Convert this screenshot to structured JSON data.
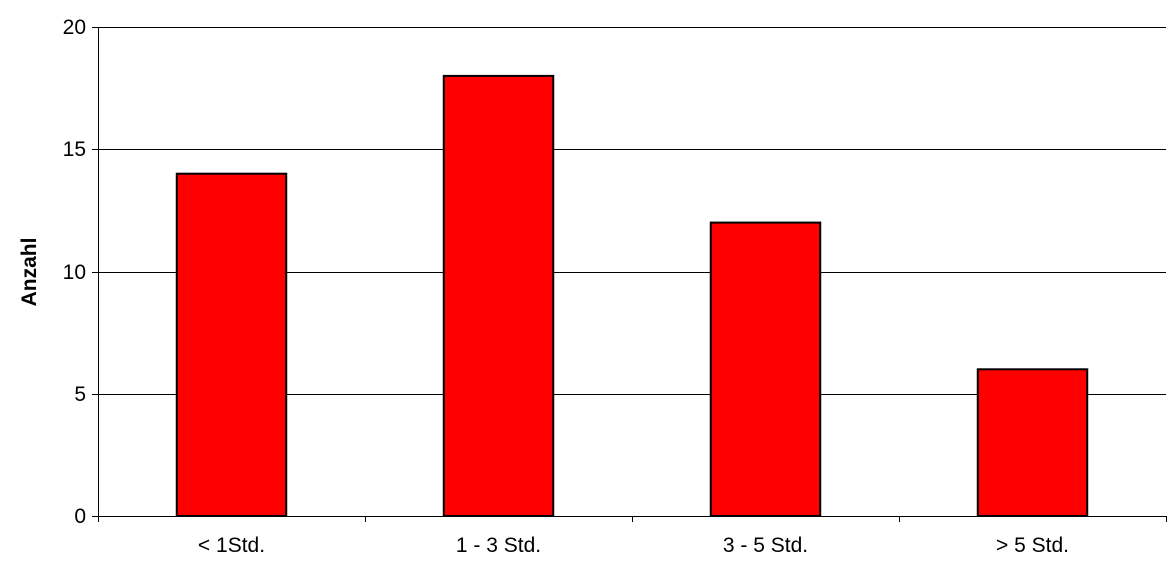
{
  "chart_data": {
    "type": "bar",
    "title": "",
    "xlabel": "",
    "ylabel": "Anzahl",
    "categories": [
      "< 1Std.",
      "1 - 3 Std.",
      "3 - 5 Std.",
      "> 5 Std."
    ],
    "values": [
      14,
      18,
      12,
      6
    ],
    "ylim": [
      0,
      20
    ],
    "yticks": [
      0,
      5,
      10,
      15,
      20
    ],
    "grid": true,
    "legend": "none",
    "bar_color": "#ff0000",
    "bar_border_color": "#000000",
    "grid_color": "#000000"
  }
}
